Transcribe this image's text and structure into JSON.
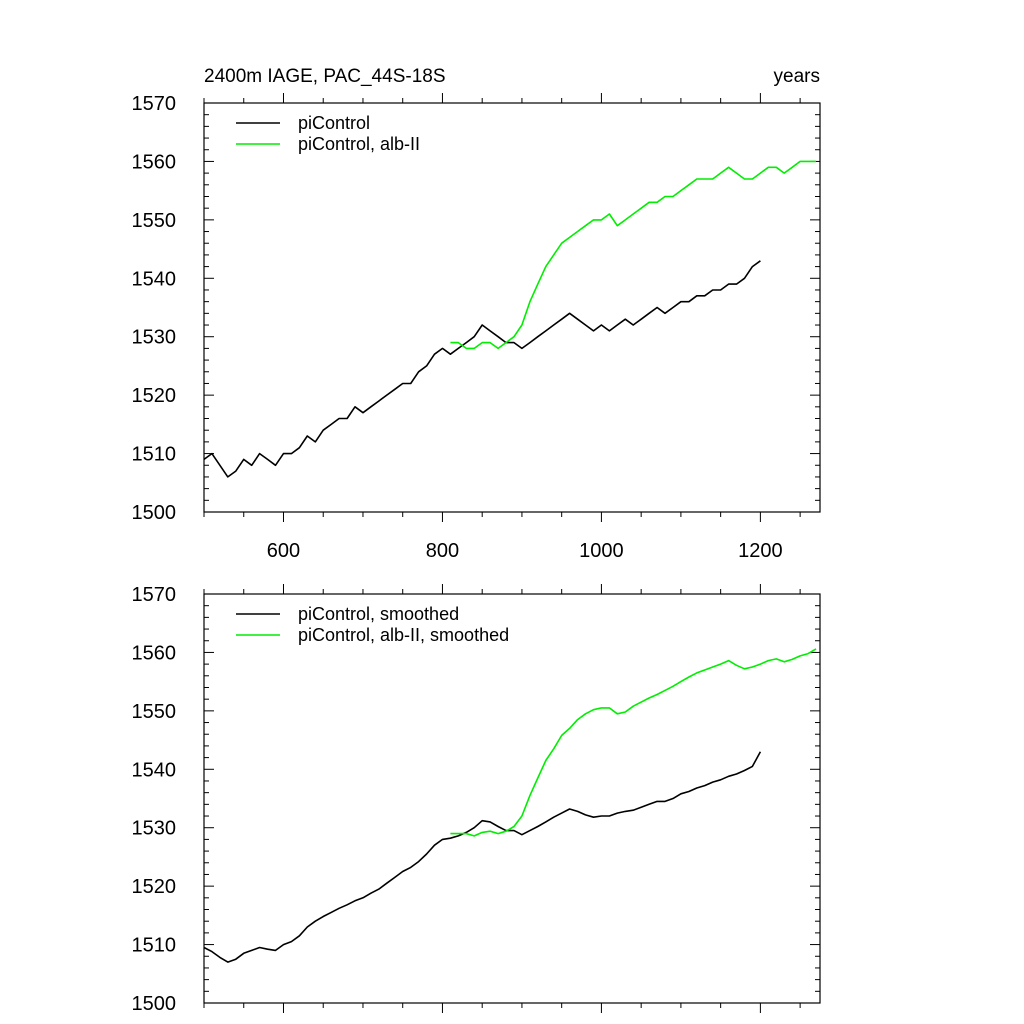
{
  "chart_data": [
    {
      "type": "line",
      "title": "2400m IAGE, PAC_44S-18S",
      "units_label": "years",
      "xlim": [
        500,
        1275
      ],
      "ylim": [
        1500,
        1570
      ],
      "x_ticks": [
        600,
        800,
        1000,
        1200
      ],
      "x_tick_labels": [
        "600",
        "800",
        "1000",
        "1200"
      ],
      "y_ticks": [
        1500,
        1510,
        1520,
        1530,
        1540,
        1550,
        1560,
        1570
      ],
      "y_tick_labels": [
        "1500",
        "1510",
        "1520",
        "1530",
        "1540",
        "1550",
        "1560",
        "1570"
      ],
      "show_x_tick_labels": true,
      "legend_position": "top-left",
      "series": [
        {
          "name": "piControl",
          "color": "#000000",
          "x": [
            500,
            510,
            520,
            530,
            540,
            550,
            560,
            570,
            580,
            590,
            600,
            610,
            620,
            630,
            640,
            650,
            660,
            670,
            680,
            690,
            700,
            710,
            720,
            730,
            740,
            750,
            760,
            770,
            780,
            790,
            800,
            810,
            820,
            830,
            840,
            850,
            860,
            870,
            880,
            890,
            900,
            910,
            920,
            930,
            940,
            950,
            960,
            970,
            980,
            990,
            1000,
            1010,
            1020,
            1030,
            1040,
            1050,
            1060,
            1070,
            1080,
            1090,
            1100,
            1110,
            1120,
            1130,
            1140,
            1150,
            1160,
            1170,
            1180,
            1190,
            1200
          ],
          "y": [
            1509,
            1510,
            1508,
            1506,
            1507,
            1509,
            1508,
            1510,
            1509,
            1508,
            1510,
            1510,
            1511,
            1513,
            1512,
            1514,
            1515,
            1516,
            1516,
            1518,
            1517,
            1518,
            1519,
            1520,
            1521,
            1522,
            1522,
            1524,
            1525,
            1527,
            1528,
            1527,
            1528,
            1529,
            1530,
            1532,
            1531,
            1530,
            1529,
            1529,
            1528,
            1529,
            1530,
            1531,
            1532,
            1533,
            1534,
            1533,
            1532,
            1531,
            1532,
            1531,
            1532,
            1533,
            1532,
            1533,
            1534,
            1535,
            1534,
            1535,
            1536,
            1536,
            1537,
            1537,
            1538,
            1538,
            1539,
            1539,
            1540,
            1542,
            1543
          ]
        },
        {
          "name": "piControl, alb-II",
          "color": "#00ee00",
          "x": [
            810,
            820,
            830,
            840,
            850,
            860,
            870,
            880,
            890,
            900,
            910,
            920,
            930,
            940,
            950,
            960,
            970,
            980,
            990,
            1000,
            1010,
            1020,
            1030,
            1040,
            1050,
            1060,
            1070,
            1080,
            1090,
            1100,
            1110,
            1120,
            1130,
            1140,
            1150,
            1160,
            1170,
            1180,
            1190,
            1200,
            1210,
            1220,
            1230,
            1240,
            1250,
            1260,
            1270
          ],
          "y": [
            1529,
            1529,
            1528,
            1528,
            1529,
            1529,
            1528,
            1529,
            1530,
            1532,
            1536,
            1539,
            1542,
            1544,
            1546,
            1547,
            1548,
            1549,
            1550,
            1550,
            1551,
            1549,
            1550,
            1551,
            1552,
            1553,
            1553,
            1554,
            1554,
            1555,
            1556,
            1557,
            1557,
            1557,
            1558,
            1559,
            1558,
            1557,
            1557,
            1558,
            1559,
            1559,
            1558,
            1559,
            1560,
            1560,
            1560
          ]
        }
      ]
    },
    {
      "type": "line",
      "title": "",
      "units_label": "",
      "xlim": [
        500,
        1275
      ],
      "ylim": [
        1500,
        1570
      ],
      "x_ticks": [
        600,
        800,
        1000,
        1200
      ],
      "x_tick_labels": [],
      "y_ticks": [
        1500,
        1510,
        1520,
        1530,
        1540,
        1550,
        1560,
        1570
      ],
      "y_tick_labels": [
        "1500",
        "1510",
        "1520",
        "1530",
        "1540",
        "1550",
        "1560",
        "1570"
      ],
      "show_x_tick_labels": false,
      "legend_position": "top-left",
      "series": [
        {
          "name": "piControl, smoothed",
          "color": "#000000",
          "x": [
            500,
            510,
            520,
            530,
            540,
            550,
            560,
            570,
            580,
            590,
            600,
            610,
            620,
            630,
            640,
            650,
            660,
            670,
            680,
            690,
            700,
            710,
            720,
            730,
            740,
            750,
            760,
            770,
            780,
            790,
            800,
            810,
            820,
            830,
            840,
            850,
            860,
            870,
            880,
            890,
            900,
            910,
            920,
            930,
            940,
            950,
            960,
            970,
            980,
            990,
            1000,
            1010,
            1020,
            1030,
            1040,
            1050,
            1060,
            1070,
            1080,
            1090,
            1100,
            1110,
            1120,
            1130,
            1140,
            1150,
            1160,
            1170,
            1180,
            1190,
            1200
          ],
          "y": [
            1509.5,
            1508.8,
            1507.8,
            1507,
            1507.5,
            1508.5,
            1509,
            1509.5,
            1509.2,
            1509,
            1510,
            1510.5,
            1511.5,
            1513,
            1514,
            1514.8,
            1515.5,
            1516.2,
            1516.8,
            1517.5,
            1518,
            1518.8,
            1519.5,
            1520.5,
            1521.5,
            1522.5,
            1523.2,
            1524.2,
            1525.5,
            1527,
            1528,
            1528.2,
            1528.6,
            1529.2,
            1530,
            1531.2,
            1531,
            1530.2,
            1529.5,
            1529.5,
            1528.8,
            1529.5,
            1530.2,
            1531,
            1531.8,
            1532.5,
            1533.2,
            1532.8,
            1532.2,
            1531.8,
            1532,
            1532,
            1532.5,
            1532.8,
            1533,
            1533.5,
            1534,
            1534.5,
            1534.5,
            1535,
            1535.8,
            1536.2,
            1536.8,
            1537.2,
            1537.8,
            1538.2,
            1538.8,
            1539.2,
            1539.8,
            1540.5,
            1543
          ]
        },
        {
          "name": "piControl, alb-II, smoothed",
          "color": "#00ee00",
          "x": [
            810,
            820,
            830,
            840,
            850,
            860,
            870,
            880,
            890,
            900,
            910,
            920,
            930,
            940,
            950,
            960,
            970,
            980,
            990,
            1000,
            1010,
            1020,
            1030,
            1040,
            1050,
            1060,
            1070,
            1080,
            1090,
            1100,
            1110,
            1120,
            1130,
            1140,
            1150,
            1160,
            1170,
            1180,
            1190,
            1200,
            1210,
            1220,
            1230,
            1240,
            1250,
            1260,
            1270
          ],
          "y": [
            1529,
            1529,
            1529,
            1528.6,
            1529.2,
            1529.4,
            1529,
            1529.4,
            1530.2,
            1532,
            1535.5,
            1538.5,
            1541.5,
            1543.5,
            1545.8,
            1547,
            1548.5,
            1549.5,
            1550.2,
            1550.5,
            1550.5,
            1549.5,
            1549.8,
            1550.8,
            1551.5,
            1552.2,
            1552.8,
            1553.5,
            1554.2,
            1555,
            1555.8,
            1556.5,
            1557,
            1557.5,
            1558,
            1558.6,
            1557.8,
            1557.2,
            1557.5,
            1558,
            1558.6,
            1558.9,
            1558.4,
            1558.8,
            1559.4,
            1559.8,
            1560.6
          ]
        }
      ]
    }
  ]
}
